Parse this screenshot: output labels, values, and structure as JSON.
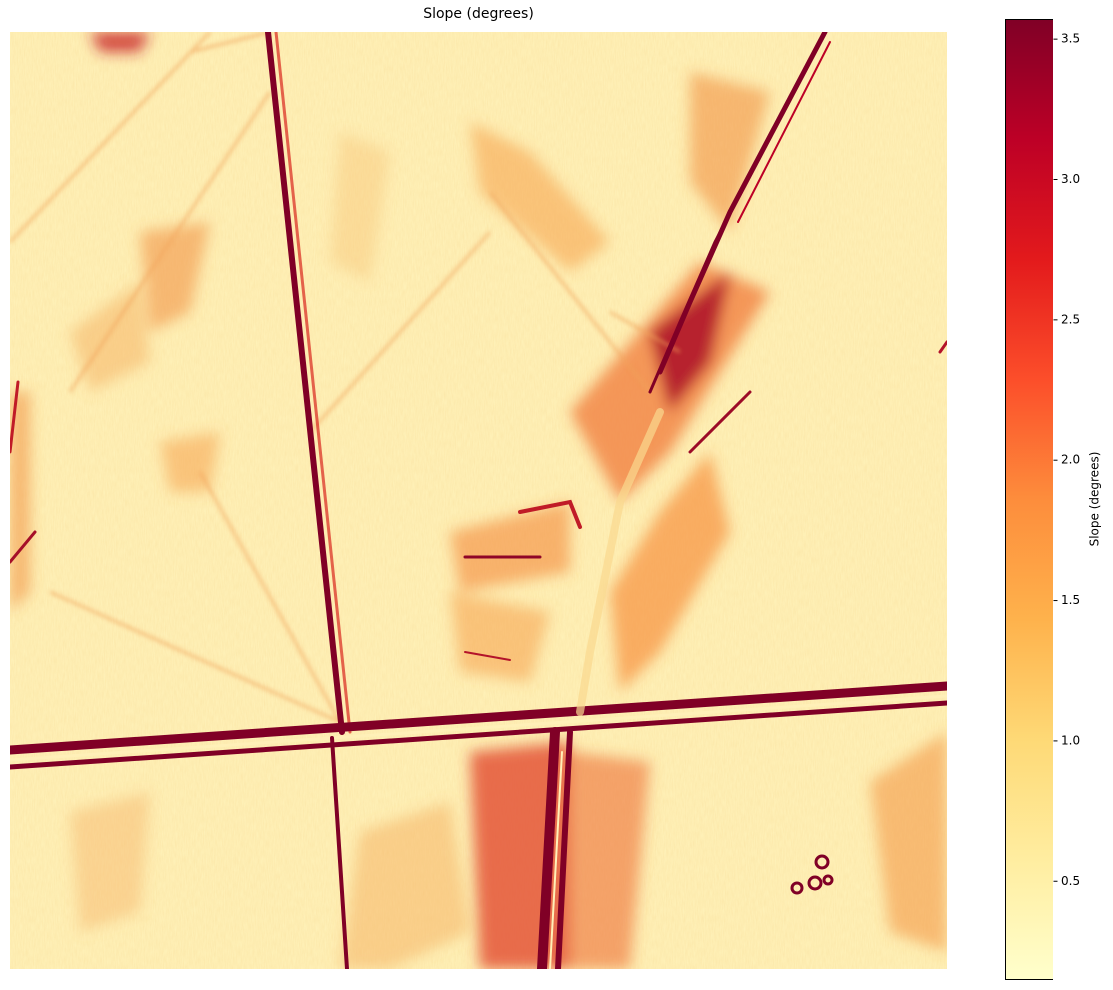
{
  "chart_data": {
    "type": "heatmap",
    "title": "Slope (degrees)",
    "colorbar": {
      "label": "Slope (degrees)",
      "range": [
        0.15,
        3.57
      ],
      "ticks": [
        0.5,
        1.0,
        1.5,
        2.0,
        2.5,
        3.0,
        3.5
      ],
      "tick_labels": [
        "0.5",
        "1.0",
        "1.5",
        "2.0",
        "2.5",
        "3.0",
        "3.5"
      ],
      "colormap": "YlOrRd",
      "colormap_stops": [
        "#ffffcc",
        "#ffeda0",
        "#fed976",
        "#feb24c",
        "#fd8d3c",
        "#fc4e2a",
        "#e31a1c",
        "#bd0026",
        "#800026"
      ]
    },
    "axes_visible": false
  }
}
